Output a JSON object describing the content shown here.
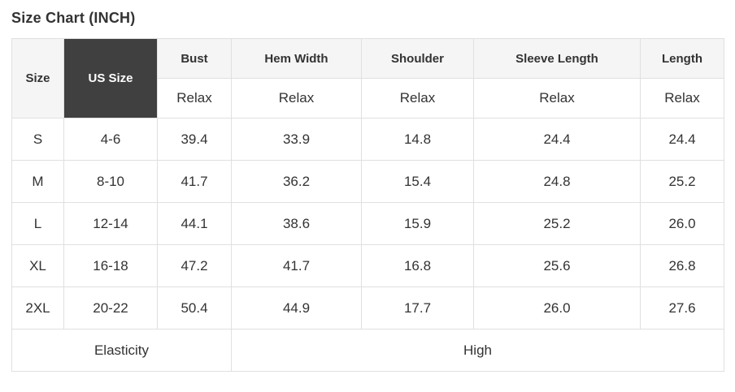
{
  "title": "Size Chart (INCH)",
  "table": {
    "corner_headers": {
      "size": "Size",
      "us_size": "US Size"
    },
    "measure_columns": [
      {
        "label": "Bust",
        "fit": "Relax"
      },
      {
        "label": "Hem Width",
        "fit": "Relax"
      },
      {
        "label": "Shoulder",
        "fit": "Relax"
      },
      {
        "label": "Sleeve Length",
        "fit": "Relax"
      },
      {
        "label": "Length",
        "fit": "Relax"
      }
    ],
    "rows": [
      {
        "size": "S",
        "us_size": "4-6",
        "values": [
          "39.4",
          "33.9",
          "14.8",
          "24.4",
          "24.4"
        ]
      },
      {
        "size": "M",
        "us_size": "8-10",
        "values": [
          "41.7",
          "36.2",
          "15.4",
          "24.8",
          "25.2"
        ]
      },
      {
        "size": "L",
        "us_size": "12-14",
        "values": [
          "44.1",
          "38.6",
          "15.9",
          "25.2",
          "26.0"
        ]
      },
      {
        "size": "XL",
        "us_size": "16-18",
        "values": [
          "47.2",
          "41.7",
          "16.8",
          "25.6",
          "26.8"
        ]
      },
      {
        "size": "2XL",
        "us_size": "20-22",
        "values": [
          "50.4",
          "44.9",
          "17.7",
          "26.0",
          "27.6"
        ]
      }
    ],
    "footer": {
      "label": "Elasticity",
      "value": "High"
    }
  },
  "colors": {
    "header_bg": "#f5f5f5",
    "dark_cell_bg": "#404040",
    "dark_cell_text": "#ffffff",
    "border": "#e0e0e0",
    "text": "#333333"
  }
}
